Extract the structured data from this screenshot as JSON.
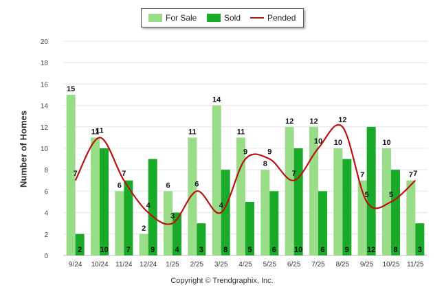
{
  "chart_data": {
    "type": "bar",
    "categories": [
      "9/24",
      "10/24",
      "11/24",
      "12/24",
      "1/25",
      "2/25",
      "3/25",
      "4/25",
      "5/25",
      "6/25",
      "7/25",
      "8/25",
      "9/25",
      "10/25",
      "11/25"
    ],
    "series": [
      {
        "name": "For Sale",
        "type": "bar",
        "color": "#99dd88",
        "values": [
          15,
          11,
          6,
          2,
          6,
          11,
          14,
          11,
          8,
          12,
          12,
          10,
          7,
          10,
          7
        ]
      },
      {
        "name": "Sold",
        "type": "bar",
        "color": "#1aaa2a",
        "values": [
          2,
          10,
          7,
          9,
          4,
          3,
          8,
          5,
          6,
          10,
          6,
          9,
          12,
          8,
          3
        ]
      },
      {
        "name": "Pended",
        "type": "line",
        "color": "#bb1111",
        "values": [
          7,
          11,
          7,
          4,
          3,
          6,
          4,
          9,
          9,
          7,
          10,
          12,
          5,
          5,
          7
        ]
      }
    ],
    "ylabel": "Number of Homes",
    "ylim": [
      0,
      20
    ],
    "yticks": [
      0,
      2,
      4,
      6,
      8,
      10,
      12,
      14,
      16,
      18,
      20
    ],
    "grid": true,
    "legend": "top-center"
  },
  "copyright": "Copyright © Trendgraphix, Inc."
}
